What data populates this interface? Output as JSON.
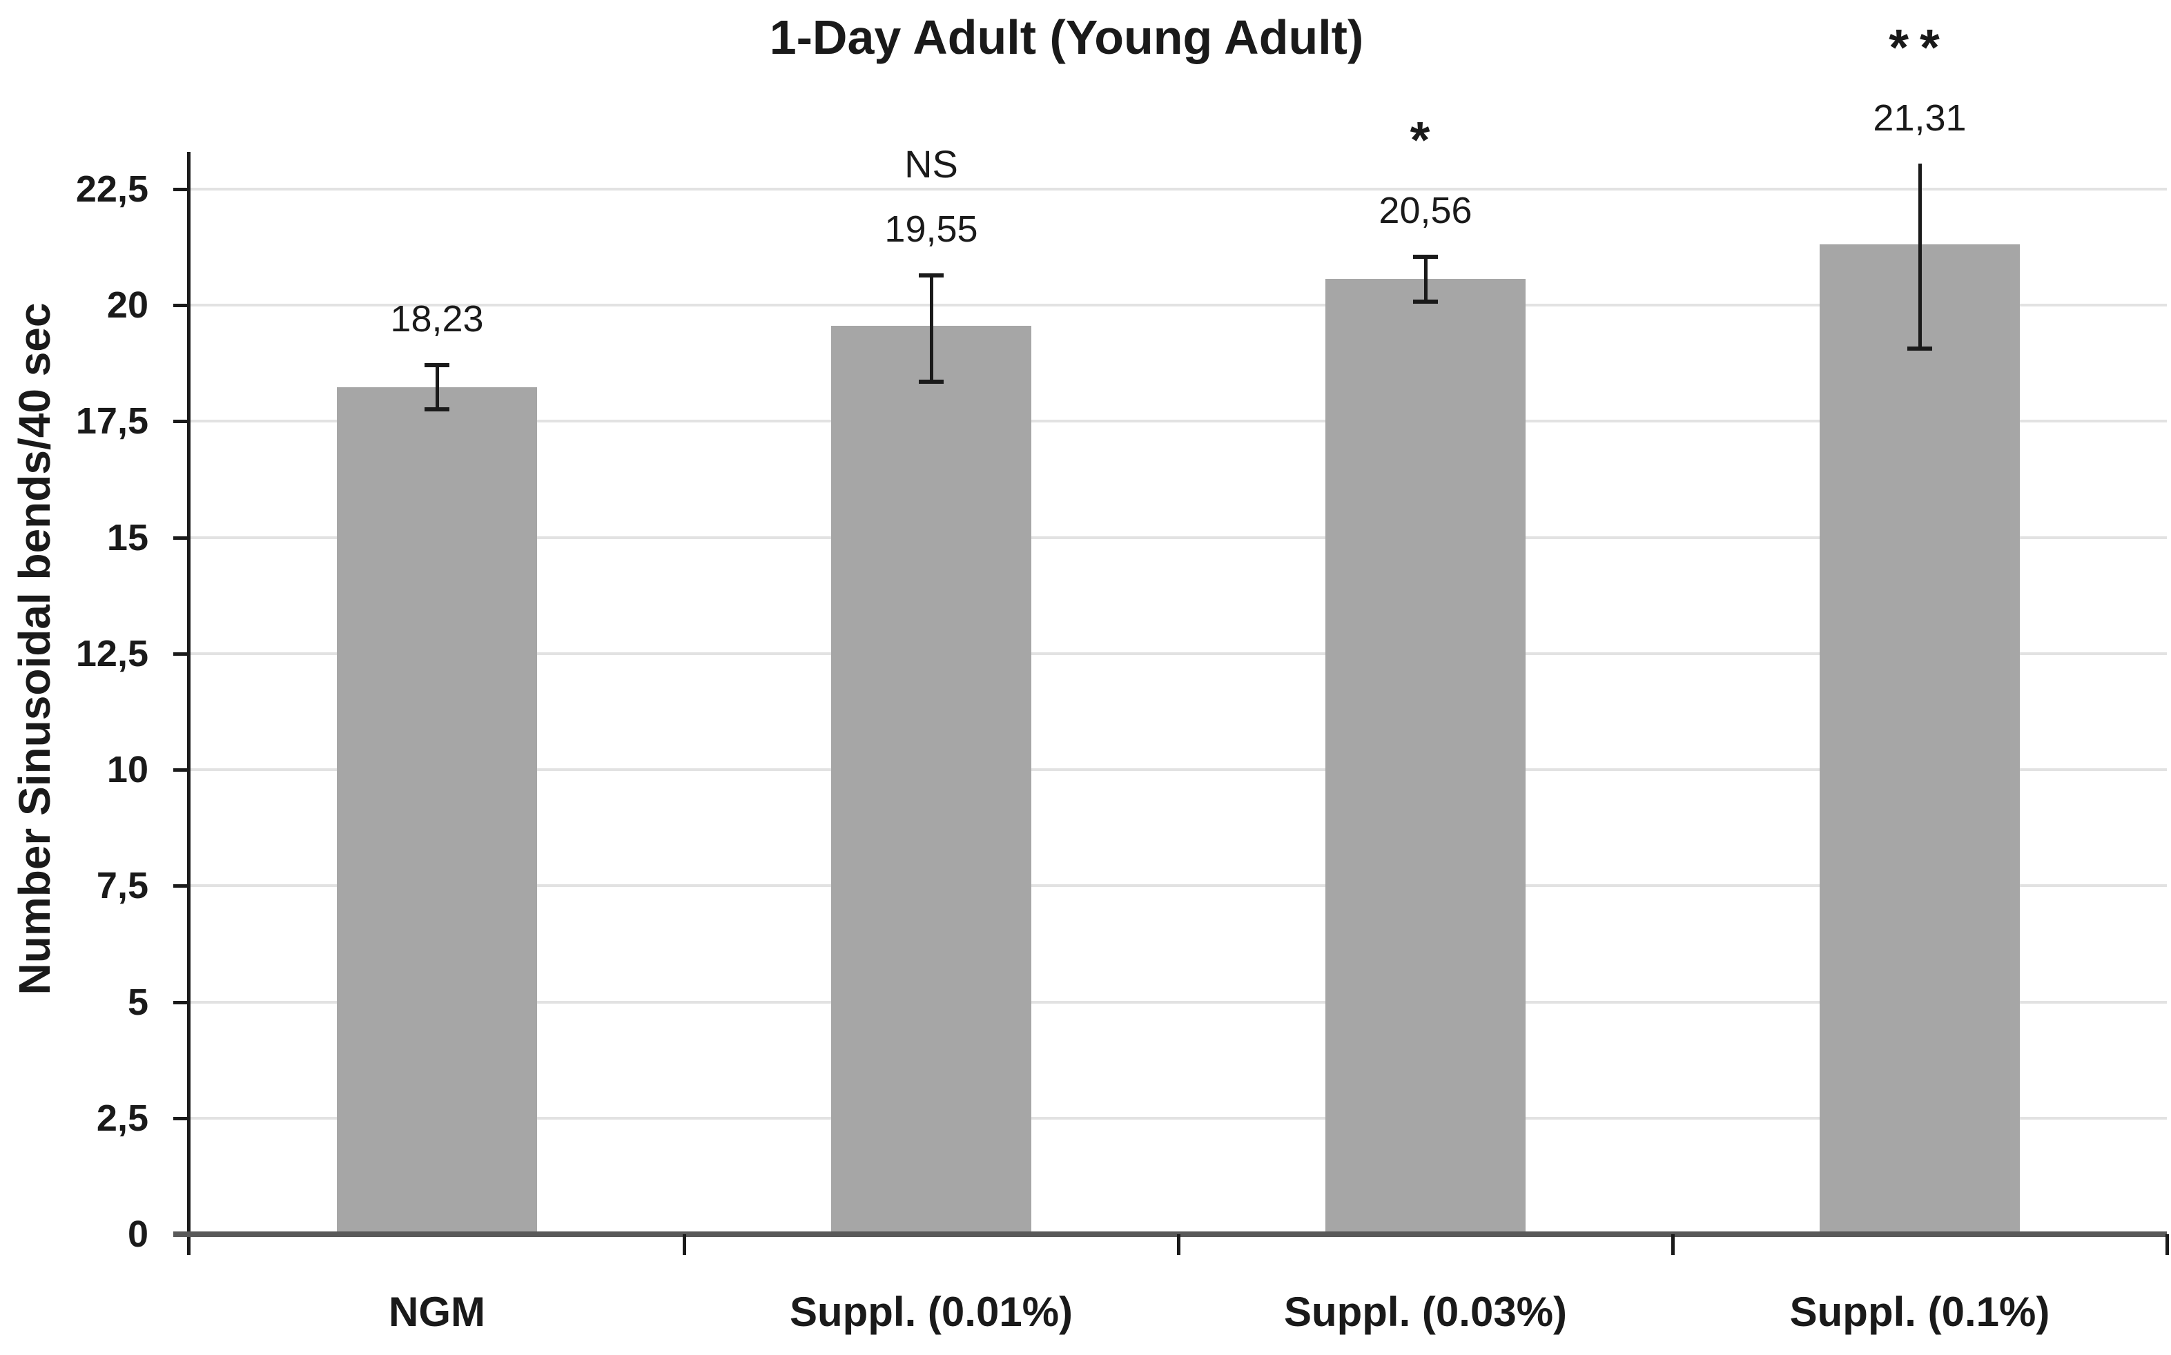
{
  "chart_data": {
    "type": "bar",
    "title": "1-Day Adult (Young Adult)",
    "ylabel": "Number Sinusoidal bends/40 sec",
    "xlabel": "",
    "categories": [
      "NGM",
      "Suppl. (0.01%)",
      "Suppl. (0.03%)",
      "Suppl. (0.1%)"
    ],
    "values": [
      18.23,
      19.55,
      20.56,
      21.31
    ],
    "value_labels": [
      "18,23",
      "19,55",
      "20,56",
      "21,31"
    ],
    "annotations": [
      "",
      "NS",
      "*",
      "**"
    ],
    "error_bars": [
      {
        "upper": 18.72,
        "lower": 17.74,
        "cap_top": true,
        "cap_bottom": true
      },
      {
        "upper": 20.66,
        "lower": 18.34,
        "cap_top": true,
        "cap_bottom": true
      },
      {
        "upper": 21.05,
        "lower": 20.06,
        "cap_top": true,
        "cap_bottom": true
      },
      {
        "upper": 23.05,
        "lower": 19.05,
        "cap_top": false,
        "cap_bottom": true
      }
    ],
    "yticks": [
      0,
      2.5,
      5,
      7.5,
      10,
      12.5,
      15,
      17.5,
      20,
      22.5
    ],
    "ytick_labels": [
      "0",
      "2,5",
      "5",
      "7,5",
      "10",
      "12,5",
      "15",
      "17,5",
      "20",
      "22,5"
    ],
    "ylim": [
      0,
      23.3
    ],
    "grid": true,
    "legend": "none",
    "colors": {
      "bar_fill": "#a6a6a6",
      "gridline": "#e2e2e2",
      "baseline": "#595959",
      "axis_line": "#1a1a1a",
      "tick": "#1a1a1a",
      "error_bar": "#1a1a1a",
      "text": "#000000"
    }
  }
}
